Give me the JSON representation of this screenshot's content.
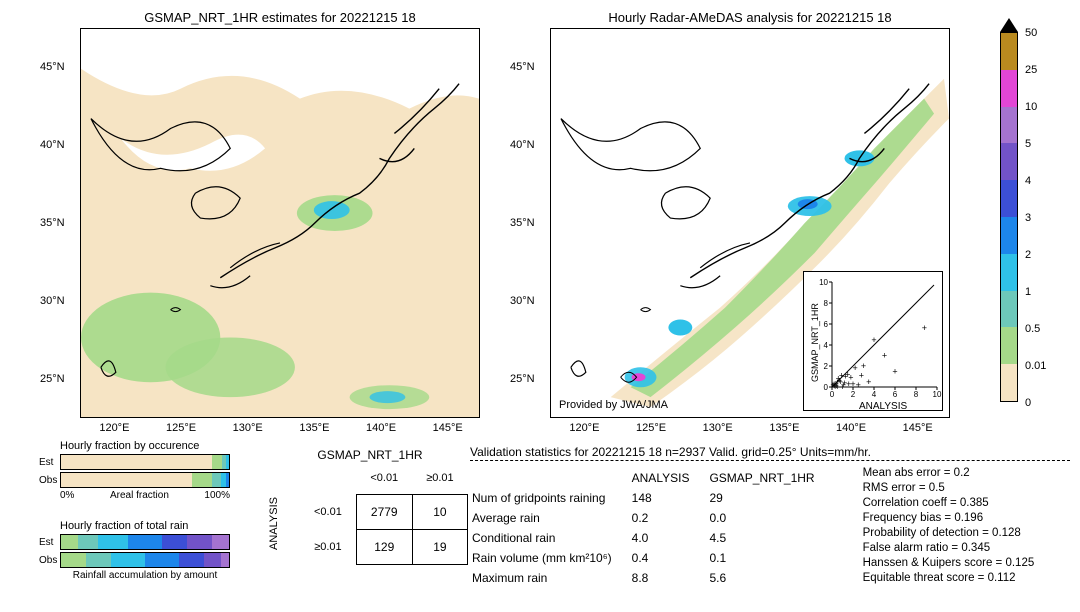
{
  "page_bg": "#ffffff",
  "text_color": "#000000",
  "colorscale": {
    "ticks": [
      "0",
      "0.01",
      "0.5",
      "1",
      "2",
      "3",
      "4",
      "5",
      "10",
      "25",
      "50"
    ],
    "colors": [
      "#f6e4c4",
      "#a5d989",
      "#6dc8ba",
      "#2fc1e8",
      "#1d86ea",
      "#3c4fd6",
      "#7253c8",
      "#a573d0",
      "#e246d6",
      "#b98a1f"
    ],
    "tri_top": "#000000",
    "tri_bot": "#ffffff"
  },
  "map_left": {
    "title": "GSMAP_NRT_1HR estimates for 20221215 18",
    "x_ticks": [
      "120°E",
      "125°E",
      "130°E",
      "135°E",
      "140°E",
      "145°E"
    ],
    "y_ticks": [
      "25°N",
      "30°N",
      "35°N",
      "40°N",
      "45°N"
    ],
    "bg_color": "#f6e4c4",
    "land_fill": "#ffffff",
    "precip_fill": "#a5d989",
    "precip_strong": "#2fc1e8"
  },
  "map_right": {
    "title": "Hourly Radar-AMeDAS analysis for 20221215 18",
    "x_ticks": [
      "120°E",
      "125°E",
      "130°E",
      "135°E",
      "140°E",
      "145°E"
    ],
    "y_ticks": [
      "25°N",
      "30°N",
      "35°N",
      "40°N",
      "45°N"
    ],
    "bg_color": "#ffffff",
    "precip_fill": "#f6e4c4",
    "precip_green": "#a5d989",
    "precip_strong": "#2fc1e8",
    "provided": "Provided by JWA/JMA",
    "scatter": {
      "xlabel": "ANALYSIS",
      "ylabel": "GSMAP_NRT_1HR",
      "lim_lo": 0,
      "lim_hi": 10,
      "ticks": [
        0,
        2,
        4,
        6,
        8,
        10
      ],
      "points": [
        [
          0.2,
          0.1
        ],
        [
          0.3,
          0.2
        ],
        [
          0.5,
          0.0
        ],
        [
          0.4,
          0.3
        ],
        [
          0.8,
          0.5
        ],
        [
          1.0,
          0.0
        ],
        [
          1.2,
          0.4
        ],
        [
          0.6,
          0.8
        ],
        [
          1.5,
          1.2
        ],
        [
          2.0,
          0.3
        ],
        [
          2.2,
          1.8
        ],
        [
          2.5,
          0.2
        ],
        [
          3.0,
          2.0
        ],
        [
          3.5,
          0.5
        ],
        [
          4.0,
          4.5
        ],
        [
          0.9,
          1.1
        ],
        [
          1.1,
          0.2
        ],
        [
          0.7,
          0.6
        ],
        [
          1.8,
          0.9
        ],
        [
          2.8,
          1.1
        ],
        [
          5.0,
          3.0
        ],
        [
          6.0,
          1.5
        ],
        [
          8.8,
          5.6
        ],
        [
          0.1,
          0.2
        ],
        [
          0.3,
          0.0
        ],
        [
          0.2,
          0.3
        ],
        [
          0.5,
          0.5
        ],
        [
          0.4,
          0.1
        ],
        [
          1.3,
          1.0
        ],
        [
          1.6,
          0.3
        ]
      ]
    }
  },
  "hbar_occ": {
    "title": "Hourly fraction by occurence",
    "rows": [
      "Est",
      "Obs"
    ],
    "est": [
      {
        "c": "#f6e4c4",
        "w": 0.9
      },
      {
        "c": "#a5d989",
        "w": 0.06
      },
      {
        "c": "#6dc8ba",
        "w": 0.02
      },
      {
        "c": "#2fc1e8",
        "w": 0.02
      }
    ],
    "obs": [
      {
        "c": "#f6e4c4",
        "w": 0.78
      },
      {
        "c": "#a5d989",
        "w": 0.12
      },
      {
        "c": "#6dc8ba",
        "w": 0.05
      },
      {
        "c": "#2fc1e8",
        "w": 0.03
      },
      {
        "c": "#1d86ea",
        "w": 0.02
      }
    ],
    "x_lo": "0%",
    "x_hi": "100%",
    "x_lab": "Areal fraction"
  },
  "hbar_rain": {
    "title": "Hourly fraction of total rain",
    "rows": [
      "Est",
      "Obs"
    ],
    "est": [
      {
        "c": "#a5d989",
        "w": 0.1
      },
      {
        "c": "#6dc8ba",
        "w": 0.12
      },
      {
        "c": "#2fc1e8",
        "w": 0.18
      },
      {
        "c": "#1d86ea",
        "w": 0.2
      },
      {
        "c": "#3c4fd6",
        "w": 0.15
      },
      {
        "c": "#7253c8",
        "w": 0.15
      },
      {
        "c": "#a573d0",
        "w": 0.1
      }
    ],
    "obs": [
      {
        "c": "#a5d989",
        "w": 0.15
      },
      {
        "c": "#6dc8ba",
        "w": 0.15
      },
      {
        "c": "#2fc1e8",
        "w": 0.2
      },
      {
        "c": "#1d86ea",
        "w": 0.2
      },
      {
        "c": "#3c4fd6",
        "w": 0.15
      },
      {
        "c": "#7253c8",
        "w": 0.1
      },
      {
        "c": "#a573d0",
        "w": 0.05
      }
    ],
    "x_lab": "Rainfall accumulation by amount"
  },
  "contingency": {
    "title": "GSMAP_NRT_1HR",
    "col_labels": [
      "<0.01",
      "≥0.01"
    ],
    "row_labels": [
      "<0.01",
      "≥0.01"
    ],
    "y_axis_label": "ANALYSIS",
    "cells": [
      [
        "2779",
        "10"
      ],
      [
        "129",
        "19"
      ]
    ]
  },
  "validation": {
    "title": "Validation statistics for 20221215 18  n=2937 Valid. grid=0.25° Units=mm/hr.",
    "col_headers": [
      "ANALYSIS",
      "GSMAP_NRT_1HR"
    ],
    "rows": [
      {
        "label": "Num of gridpoints raining",
        "a": "148",
        "b": "29"
      },
      {
        "label": "Average rain",
        "a": "0.2",
        "b": "0.0"
      },
      {
        "label": "Conditional rain",
        "a": "4.0",
        "b": "4.5"
      },
      {
        "label": "Rain volume (mm km²10⁶)",
        "a": "0.4",
        "b": "0.1"
      },
      {
        "label": "Maximum rain",
        "a": "8.8",
        "b": "5.6"
      }
    ],
    "right": [
      "Mean abs error =    0.2",
      "RMS error =    0.5",
      "Correlation coeff =  0.385",
      "Frequency bias =  0.196",
      "Probability of detection =  0.128",
      "False alarm ratio =  0.345",
      "Hanssen & Kuipers score =  0.125",
      "Equitable threat score =  0.112"
    ]
  }
}
